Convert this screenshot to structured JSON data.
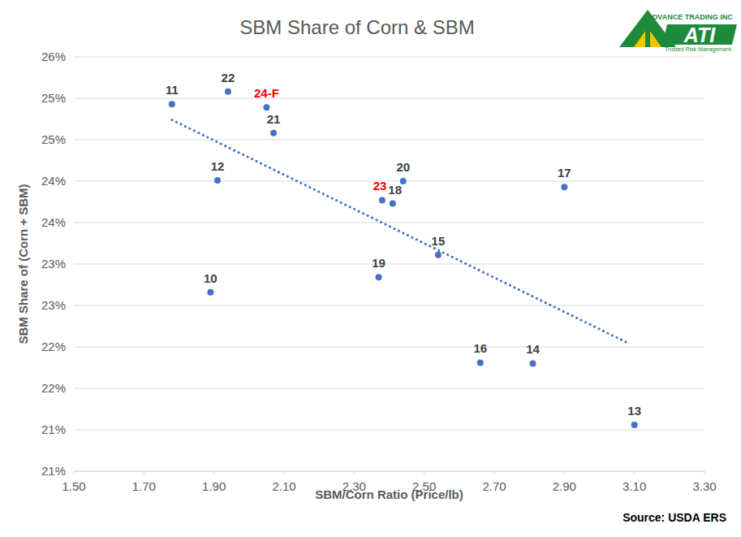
{
  "chart_data": {
    "type": "scatter",
    "title": "SBM Share of Corn & SBM",
    "x_label": "SBM/Corn Ratio (Price/lb)",
    "y_label": "SBM Share of (Corn + SBM)",
    "source": "Source:  USDA ERS",
    "logo": {
      "name": "ADVANCE TRADING INC",
      "mark": "ATI",
      "tagline": "Trusted Risk Management"
    },
    "xlim": [
      1.5,
      3.3
    ],
    "xticks": [
      {
        "value": 1.5,
        "label": "1.50"
      },
      {
        "value": 1.7,
        "label": "1.70"
      },
      {
        "value": 1.9,
        "label": "1.90"
      },
      {
        "value": 2.1,
        "label": "2.10"
      },
      {
        "value": 2.3,
        "label": "2.30"
      },
      {
        "value": 2.5,
        "label": "2.50"
      },
      {
        "value": 2.7,
        "label": "2.70"
      },
      {
        "value": 2.9,
        "label": "2.90"
      },
      {
        "value": 3.1,
        "label": "3.10"
      },
      {
        "value": 3.3,
        "label": "3.30"
      }
    ],
    "ylim": [
      20.5,
      25.5
    ],
    "yticks": [
      {
        "value": 20.5,
        "label": "21%"
      },
      {
        "value": 21.0,
        "label": "21%"
      },
      {
        "value": 21.5,
        "label": "22%"
      },
      {
        "value": 22.0,
        "label": "22%"
      },
      {
        "value": 22.5,
        "label": "23%"
      },
      {
        "value": 23.0,
        "label": "23%"
      },
      {
        "value": 23.5,
        "label": "24%"
      },
      {
        "value": 24.0,
        "label": "24%"
      },
      {
        "value": 24.5,
        "label": "25%"
      },
      {
        "value": 25.0,
        "label": "25%"
      },
      {
        "value": 25.5,
        "label": "26%"
      }
    ],
    "grid": true,
    "series": [
      {
        "type": "scatter",
        "color": "#4472c4",
        "marker": "circle",
        "x": [
          1.78,
          1.94,
          2.05,
          2.07,
          1.91,
          1.89,
          2.44,
          2.38,
          2.41,
          2.37,
          2.54,
          2.9,
          2.66,
          2.81,
          3.1
        ],
        "values": [
          24.93,
          25.08,
          24.89,
          24.58,
          24.01,
          22.66,
          24.0,
          23.77,
          23.73,
          22.84,
          23.11,
          23.93,
          21.81,
          21.8,
          21.06
        ],
        "labels": [
          "11",
          "22",
          "24-F",
          "21",
          "12",
          "10",
          "20",
          "23",
          "18",
          "19",
          "15",
          "17",
          "16",
          "14",
          "13"
        ],
        "label_colors": [
          "#404040",
          "#404040",
          "#ff0000",
          "#404040",
          "#404040",
          "#404040",
          "#404040",
          "#ff0000",
          "#404040",
          "#404040",
          "#404040",
          "#404040",
          "#404040",
          "#404040",
          "#404040"
        ]
      },
      {
        "type": "line",
        "color": "#4472c4",
        "line_style": "dotted",
        "x": [
          1.78,
          3.08
        ],
        "values": [
          24.74,
          22.05
        ]
      }
    ]
  }
}
